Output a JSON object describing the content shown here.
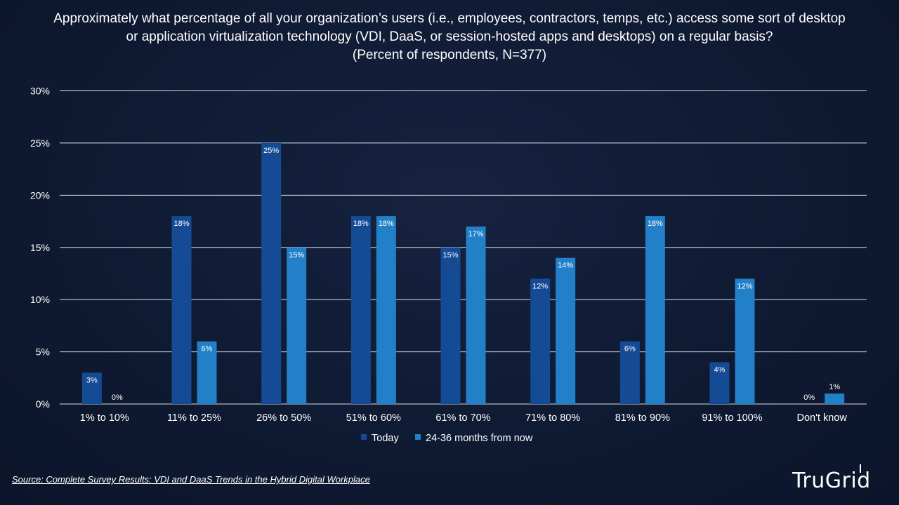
{
  "title": {
    "line1": "Approximately what percentage of all your organization’s users (i.e., employees, contractors, temps, etc.) access some sort of desktop",
    "line2": "or application virtualization technology (VDI, DaaS, or session-hosted apps and desktops) on a regular basis?",
    "line3": "(Percent of respondents, N=377)"
  },
  "chart_data": {
    "type": "bar",
    "categories": [
      "1% to 10%",
      "11% to 25%",
      "26% to 50%",
      "51% to 60%",
      "61% to 70%",
      "71% to 80%",
      "81% to 90%",
      "91% to 100%",
      "Don't know"
    ],
    "series": [
      {
        "name": "Today",
        "color": "#154b94",
        "values": [
          3,
          18,
          25,
          18,
          15,
          12,
          6,
          4,
          0
        ],
        "labels": [
          "3%",
          "18%",
          "25%",
          "18%",
          "15%",
          "12%",
          "6%",
          "4%",
          "0%"
        ]
      },
      {
        "name": "24-36 months from now",
        "color": "#2280c8",
        "values": [
          0,
          6,
          15,
          18,
          17,
          14,
          18,
          12,
          1
        ],
        "labels": [
          "0%",
          "6%",
          "15%",
          "18%",
          "17%",
          "14%",
          "18%",
          "12%",
          "1%"
        ]
      }
    ],
    "ylim": [
      0,
      30
    ],
    "yticks": [
      0,
      5,
      10,
      15,
      20,
      25,
      30
    ],
    "ytick_labels": [
      "0%",
      "5%",
      "10%",
      "15%",
      "20%",
      "25%",
      "30%"
    ],
    "grid": true,
    "legend": "bottom-center",
    "xlabel": "",
    "ylabel": ""
  },
  "source": "Source: Complete Survey Results: VDI and DaaS Trends in the Hybrid Digital Workplace",
  "logo": "TruGrid"
}
